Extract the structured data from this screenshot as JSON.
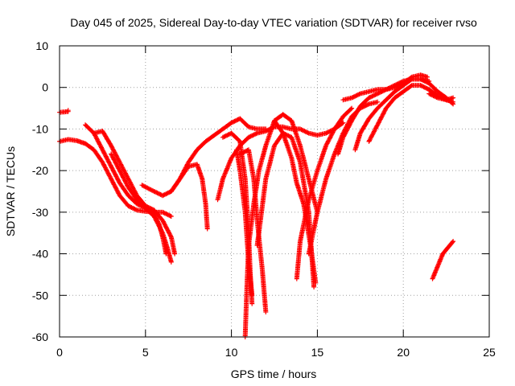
{
  "chart_data": {
    "type": "scatter",
    "title": "Day 045 of 2025, Sidereal Day-to-day VTEC variation (SDTVAR) for receiver rvso",
    "xlabel": "GPS time / hours",
    "ylabel": "SDTVAR / TECUs",
    "xlim": [
      0,
      25
    ],
    "ylim": [
      -60,
      10
    ],
    "xticks": [
      0,
      5,
      10,
      15,
      20,
      25
    ],
    "yticks": [
      10,
      0,
      -10,
      -20,
      -30,
      -40,
      -50,
      -60
    ],
    "xtick_labels": [
      "0",
      "5",
      "10",
      "15",
      "20",
      "25"
    ],
    "ytick_labels": [
      "10",
      "0",
      "-10",
      "-20",
      "-30",
      "-40",
      "-50",
      "-60"
    ],
    "grid": true,
    "marker": "+",
    "color": "#ff0000",
    "series": [
      {
        "name": "track-1",
        "points": [
          [
            0,
            -6
          ],
          [
            0.5,
            -5.8
          ],
          [
            0.5,
            -5.5
          ]
        ]
      },
      {
        "name": "track-2",
        "points": [
          [
            0,
            -13
          ],
          [
            0.5,
            -12.5
          ],
          [
            1,
            -12.8
          ],
          [
            1.5,
            -13.5
          ],
          [
            2,
            -15
          ],
          [
            2.5,
            -18
          ],
          [
            3,
            -22
          ],
          [
            3.5,
            -26
          ],
          [
            4,
            -28.5
          ],
          [
            4.5,
            -29.5
          ],
          [
            5,
            -29.8
          ],
          [
            5.5,
            -30
          ],
          [
            6,
            -30
          ],
          [
            6.5,
            -31
          ]
        ]
      },
      {
        "name": "track-3",
        "points": [
          [
            1.5,
            -9
          ],
          [
            2,
            -11
          ],
          [
            2.5,
            -15
          ],
          [
            3,
            -19
          ],
          [
            3.5,
            -23
          ],
          [
            4,
            -26
          ],
          [
            4.5,
            -28
          ],
          [
            5,
            -29
          ],
          [
            5.5,
            -31
          ],
          [
            6,
            -35
          ],
          [
            6.3,
            -39
          ],
          [
            6.5,
            -42
          ]
        ]
      },
      {
        "name": "track-4",
        "points": [
          [
            2,
            -11
          ],
          [
            2.5,
            -10.5
          ],
          [
            3,
            -14
          ],
          [
            3.5,
            -18
          ],
          [
            4,
            -22
          ],
          [
            4.5,
            -26
          ],
          [
            5,
            -28.5
          ],
          [
            5.5,
            -29.5
          ],
          [
            6,
            -32
          ],
          [
            6.5,
            -36
          ],
          [
            6.7,
            -40
          ]
        ]
      },
      {
        "name": "track-5",
        "points": [
          [
            3,
            -16
          ],
          [
            3.5,
            -20
          ],
          [
            4,
            -24
          ],
          [
            4.5,
            -27
          ],
          [
            5,
            -29
          ],
          [
            5.5,
            -30.5
          ],
          [
            5.8,
            -33
          ],
          [
            6,
            -36
          ],
          [
            6.2,
            -40
          ]
        ]
      },
      {
        "name": "track-6",
        "points": [
          [
            4.8,
            -23.5
          ],
          [
            5.5,
            -25
          ],
          [
            6,
            -26
          ],
          [
            6.5,
            -25
          ],
          [
            7,
            -22
          ],
          [
            7.5,
            -18
          ],
          [
            8,
            -15
          ],
          [
            8.5,
            -13
          ],
          [
            9,
            -11.5
          ],
          [
            9.5,
            -10
          ],
          [
            10,
            -8.5
          ],
          [
            10.5,
            -7.5
          ],
          [
            11,
            -9.5
          ],
          [
            11.5,
            -10
          ],
          [
            12,
            -10
          ]
        ]
      },
      {
        "name": "track-7",
        "points": [
          [
            6.5,
            -25
          ],
          [
            7,
            -22
          ],
          [
            7.5,
            -19
          ],
          [
            8,
            -18.5
          ],
          [
            8.3,
            -22
          ],
          [
            8.5,
            -28
          ],
          [
            8.6,
            -34
          ]
        ]
      },
      {
        "name": "track-8",
        "points": [
          [
            9.2,
            -27
          ],
          [
            9.5,
            -22
          ],
          [
            10,
            -17
          ],
          [
            10.5,
            -14
          ],
          [
            11,
            -12
          ],
          [
            11.5,
            -11
          ],
          [
            12,
            -10.5
          ],
          [
            12.5,
            -9.5
          ],
          [
            13,
            -9.5
          ],
          [
            13.5,
            -10
          ],
          [
            14,
            -10
          ],
          [
            14.5,
            -11
          ],
          [
            15,
            -11.5
          ],
          [
            15.5,
            -11
          ],
          [
            16,
            -10
          ],
          [
            16.5,
            -8.5
          ]
        ]
      },
      {
        "name": "track-9",
        "points": [
          [
            10.3,
            -15
          ],
          [
            10.5,
            -20
          ],
          [
            10.8,
            -30
          ],
          [
            11,
            -42
          ],
          [
            11.2,
            -50
          ]
        ]
      },
      {
        "name": "track-10",
        "points": [
          [
            9.5,
            -12
          ],
          [
            10,
            -11
          ],
          [
            10.5,
            -13
          ],
          [
            10.8,
            -22
          ],
          [
            11,
            -35
          ],
          [
            11.1,
            -45
          ],
          [
            11.2,
            -52
          ]
        ]
      },
      {
        "name": "track-11",
        "points": [
          [
            10.5,
            -16
          ],
          [
            11,
            -15
          ],
          [
            11.3,
            -22
          ],
          [
            11.5,
            -32
          ],
          [
            11.8,
            -44
          ],
          [
            12,
            -54
          ]
        ]
      },
      {
        "name": "track-12",
        "points": [
          [
            10.8,
            -60
          ],
          [
            10.9,
            -48
          ],
          [
            11,
            -38
          ],
          [
            11.3,
            -28
          ],
          [
            11.6,
            -20
          ],
          [
            12,
            -14
          ],
          [
            12.5,
            -8
          ],
          [
            13,
            -6.5
          ],
          [
            13.5,
            -8
          ],
          [
            14,
            -14
          ],
          [
            14.5,
            -22
          ],
          [
            15,
            -30
          ]
        ]
      },
      {
        "name": "track-13",
        "points": [
          [
            11.5,
            -38
          ],
          [
            12,
            -22
          ],
          [
            12.5,
            -14
          ],
          [
            13,
            -11
          ],
          [
            13.5,
            -12
          ],
          [
            14,
            -18
          ],
          [
            14.5,
            -30
          ],
          [
            14.8,
            -48
          ]
        ]
      },
      {
        "name": "track-14",
        "points": [
          [
            12.5,
            -8
          ],
          [
            13,
            -11
          ],
          [
            13.5,
            -17
          ],
          [
            13.8,
            -23
          ],
          [
            14.2,
            -28
          ],
          [
            14.6,
            -38
          ],
          [
            14.9,
            -47
          ]
        ]
      },
      {
        "name": "track-15",
        "points": [
          [
            13.8,
            -46
          ],
          [
            14,
            -37
          ],
          [
            14.5,
            -27
          ],
          [
            15,
            -20
          ],
          [
            15.5,
            -14
          ],
          [
            16,
            -10
          ],
          [
            16.5,
            -7
          ],
          [
            17,
            -5
          ]
        ]
      },
      {
        "name": "track-16",
        "points": [
          [
            14.5,
            -40
          ],
          [
            15,
            -30
          ],
          [
            15.5,
            -22
          ],
          [
            16,
            -16
          ],
          [
            16.5,
            -11
          ],
          [
            17,
            -7
          ],
          [
            17.5,
            -5
          ],
          [
            18,
            -4
          ],
          [
            18.5,
            -3.5
          ]
        ]
      },
      {
        "name": "track-17",
        "points": [
          [
            16.2,
            -16
          ],
          [
            16.5,
            -12
          ],
          [
            17,
            -8
          ],
          [
            17.5,
            -4.5
          ],
          [
            18,
            -2.5
          ],
          [
            18.5,
            -1.5
          ],
          [
            19,
            -0.5
          ],
          [
            19.5,
            0.5
          ],
          [
            20,
            1.5
          ],
          [
            20.5,
            2
          ],
          [
            21,
            2
          ],
          [
            21.5,
            1.5
          ]
        ]
      },
      {
        "name": "track-18",
        "points": [
          [
            16.5,
            -3
          ],
          [
            17,
            -2.5
          ],
          [
            17.5,
            -1.5
          ],
          [
            18,
            -1
          ],
          [
            18.5,
            -0.5
          ],
          [
            19,
            -0.5
          ],
          [
            19.5,
            0
          ],
          [
            20,
            1
          ],
          [
            20.5,
            2.5
          ],
          [
            21,
            3
          ],
          [
            21.4,
            2.5
          ]
        ]
      },
      {
        "name": "track-19",
        "points": [
          [
            17.2,
            -15
          ],
          [
            17.5,
            -11
          ],
          [
            18,
            -7.5
          ],
          [
            18.5,
            -5
          ],
          [
            19,
            -3
          ],
          [
            19.5,
            -1
          ],
          [
            20,
            0.5
          ],
          [
            20.5,
            2
          ],
          [
            21,
            2
          ],
          [
            21.5,
            1
          ],
          [
            22,
            -1
          ],
          [
            22.5,
            -2.5
          ],
          [
            22.9,
            -4
          ]
        ]
      },
      {
        "name": "track-20",
        "points": [
          [
            18,
            -13
          ],
          [
            18.5,
            -9
          ],
          [
            19,
            -5
          ],
          [
            19.5,
            -2.5
          ],
          [
            20,
            -1
          ],
          [
            20.5,
            0.5
          ],
          [
            21,
            0.5
          ],
          [
            21.5,
            -0.5
          ],
          [
            22,
            -2
          ],
          [
            22.5,
            -3
          ],
          [
            22.9,
            -3.5
          ]
        ]
      },
      {
        "name": "track-21",
        "points": [
          [
            21.5,
            -1.5
          ],
          [
            22,
            -2.5
          ],
          [
            22.5,
            -3
          ],
          [
            22.9,
            -2.5
          ]
        ]
      },
      {
        "name": "track-22",
        "points": [
          [
            21.7,
            -46
          ],
          [
            22,
            -43
          ],
          [
            22.3,
            -40
          ],
          [
            22.6,
            -38.5
          ],
          [
            22.9,
            -37
          ]
        ]
      }
    ]
  }
}
